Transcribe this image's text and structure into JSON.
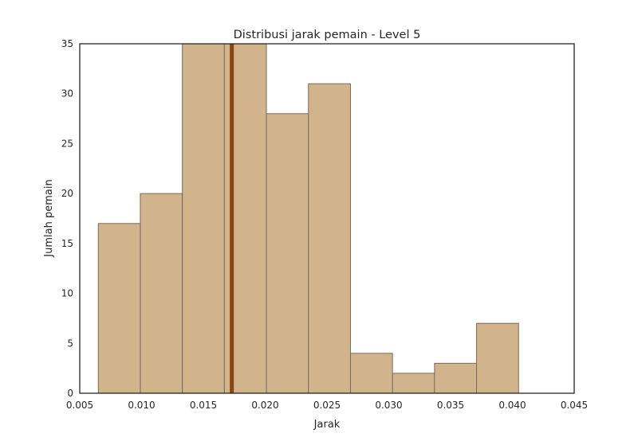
{
  "chart_data": {
    "type": "bar",
    "subtype": "histogram",
    "title": "Distribusi jarak pemain - Level 5",
    "xlabel": "Jarak",
    "ylabel": "Jumlah pemain",
    "xlim": [
      0.005,
      0.045
    ],
    "ylim": [
      0,
      35
    ],
    "xticks": [
      0.005,
      0.01,
      0.015,
      0.02,
      0.025,
      0.03,
      0.035,
      0.04,
      0.045
    ],
    "xtick_labels": [
      "0.005",
      "0.010",
      "0.015",
      "0.020",
      "0.025",
      "0.030",
      "0.035",
      "0.040",
      "0.045"
    ],
    "yticks": [
      0,
      5,
      10,
      15,
      20,
      25,
      30,
      35
    ],
    "ytick_labels": [
      "0",
      "5",
      "10",
      "15",
      "20",
      "25",
      "30",
      "35"
    ],
    "bin_edges": [
      0.0065,
      0.0099,
      0.0133,
      0.0167,
      0.0201,
      0.0235,
      0.0269,
      0.0303,
      0.0337,
      0.0371,
      0.0405
    ],
    "counts": [
      17,
      20,
      35,
      35,
      28,
      31,
      4,
      2,
      3,
      7
    ],
    "mean_line": {
      "x": 0.0173,
      "color": "#8b4513"
    },
    "bar_color": "#d2b48c",
    "bar_edge_color": "#7a6a57",
    "grid": false,
    "legend": "none"
  }
}
